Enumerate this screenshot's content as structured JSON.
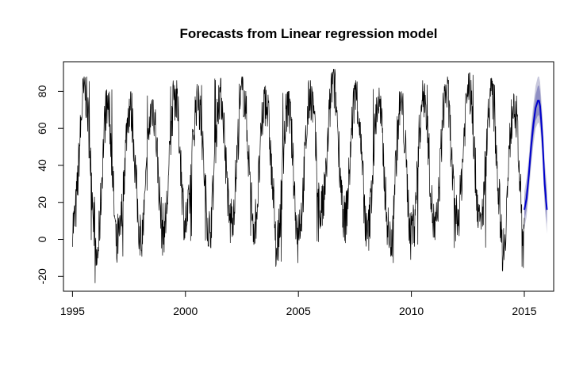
{
  "chart_data": {
    "type": "line",
    "title": "Forecasts from Linear regression model",
    "xlabel": "",
    "ylabel": "",
    "xlim": [
      1994.6,
      2016.3
    ],
    "ylim": [
      -28,
      96
    ],
    "x_ticks": [
      1995,
      2000,
      2005,
      2010,
      2015
    ],
    "y_ticks": [
      -20,
      0,
      20,
      40,
      60,
      80
    ],
    "grid": false,
    "legend": "none",
    "series": [
      {
        "role": "observed",
        "color": "#000000",
        "x_start": 1995.0,
        "x_end": 2015.0,
        "mean_level": 40,
        "seasonal_amplitude": 27,
        "noise_range": 14,
        "seasonal_peaks": [
          {
            "year": 1995,
            "max": 88
          },
          {
            "year": 1996,
            "max": 81
          },
          {
            "year": 1997,
            "max": 80
          },
          {
            "year": 1998,
            "max": 80
          },
          {
            "year": 1999,
            "max": 86
          },
          {
            "year": 2000,
            "max": 84
          },
          {
            "year": 2001,
            "max": 87
          },
          {
            "year": 2002,
            "max": 88
          },
          {
            "year": 2003,
            "max": 83
          },
          {
            "year": 2004,
            "max": 80
          },
          {
            "year": 2005,
            "max": 86
          },
          {
            "year": 2006,
            "max": 92
          },
          {
            "year": 2007,
            "max": 86
          },
          {
            "year": 2008,
            "max": 82
          },
          {
            "year": 2009,
            "max": 80
          },
          {
            "year": 2010,
            "max": 86
          },
          {
            "year": 2011,
            "max": 88
          },
          {
            "year": 2012,
            "max": 90
          },
          {
            "year": 2013,
            "max": 87
          },
          {
            "year": 2014,
            "max": 82
          }
        ],
        "seasonal_troughs": [
          {
            "year": 1995,
            "min": -4
          },
          {
            "year": 1996,
            "min": -24
          },
          {
            "year": 1997,
            "min": -12
          },
          {
            "year": 1998,
            "min": -10
          },
          {
            "year": 1999,
            "min": -7
          },
          {
            "year": 2000,
            "min": -2
          },
          {
            "year": 2001,
            "min": -7
          },
          {
            "year": 2002,
            "min": 0
          },
          {
            "year": 2003,
            "min": -4
          },
          {
            "year": 2004,
            "min": -15
          },
          {
            "year": 2005,
            "min": -3
          },
          {
            "year": 2006,
            "min": 4
          },
          {
            "year": 2007,
            "min": -2
          },
          {
            "year": 2008,
            "min": -10
          },
          {
            "year": 2009,
            "min": -13
          },
          {
            "year": 2010,
            "min": -5
          },
          {
            "year": 2011,
            "min": -8
          },
          {
            "year": 2012,
            "min": 0
          },
          {
            "year": 2013,
            "min": -6
          },
          {
            "year": 2014,
            "min": -17
          }
        ]
      },
      {
        "role": "forecast",
        "color": "#0000cc",
        "x": [
          2015.0,
          2015.1,
          2015.2,
          2015.3,
          2015.4,
          2015.5,
          2015.6,
          2015.65,
          2015.7,
          2015.8,
          2015.9,
          2016.0
        ],
        "y": [
          16,
          22,
          35,
          50,
          62,
          71,
          75,
          75,
          72,
          55,
          30,
          16
        ],
        "interval_80": {
          "color": "#8f8fc4",
          "lower": [
            10,
            16,
            29,
            43,
            55,
            64,
            67,
            67,
            64,
            47,
            22,
            8
          ],
          "upper": [
            22,
            28,
            41,
            57,
            69,
            78,
            83,
            83,
            80,
            63,
            38,
            24
          ]
        },
        "interval_95": {
          "color": "#c8c8dc",
          "lower": [
            6,
            12,
            25,
            39,
            51,
            60,
            63,
            63,
            60,
            43,
            18,
            3
          ],
          "upper": [
            26,
            33,
            45,
            61,
            73,
            83,
            88,
            88,
            85,
            67,
            43,
            29
          ]
        }
      }
    ]
  }
}
